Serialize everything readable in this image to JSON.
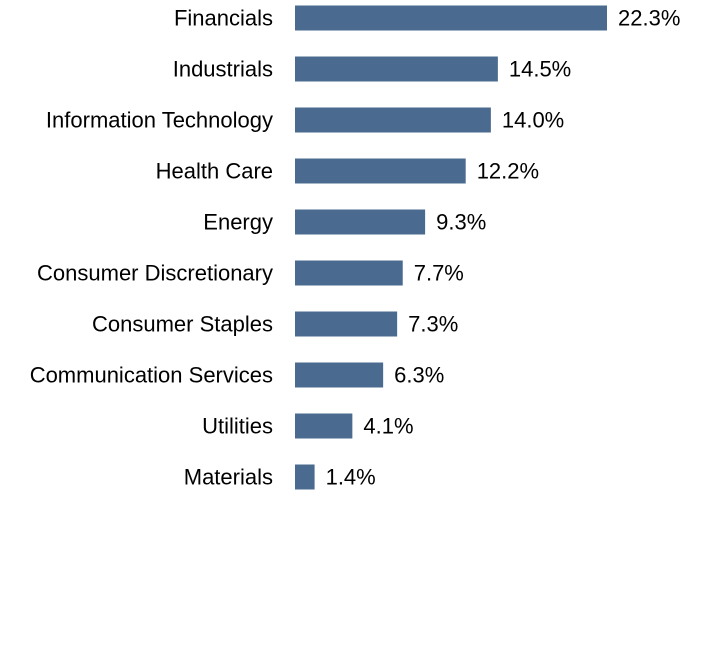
{
  "chart_data": {
    "type": "bar",
    "orientation": "horizontal",
    "categories": [
      "Financials",
      "Industrials",
      "Information Technology",
      "Health Care",
      "Energy",
      "Consumer Discretionary",
      "Consumer Staples",
      "Communication Services",
      "Utilities",
      "Materials"
    ],
    "values": [
      22.3,
      14.5,
      14.0,
      12.2,
      9.3,
      7.7,
      7.3,
      6.3,
      4.1,
      1.4
    ],
    "value_labels": [
      "22.3%",
      "14.5%",
      "14.0%",
      "12.2%",
      "9.3%",
      "7.7%",
      "7.3%",
      "6.3%",
      "4.1%",
      "1.4%"
    ],
    "title": "",
    "xlabel": "",
    "ylabel": "",
    "xlim": [
      0,
      22.3
    ],
    "grid": false,
    "legend": "none",
    "colors": {
      "bar": "#4a6b8f",
      "text": "#000000",
      "background": "#ffffff"
    }
  }
}
